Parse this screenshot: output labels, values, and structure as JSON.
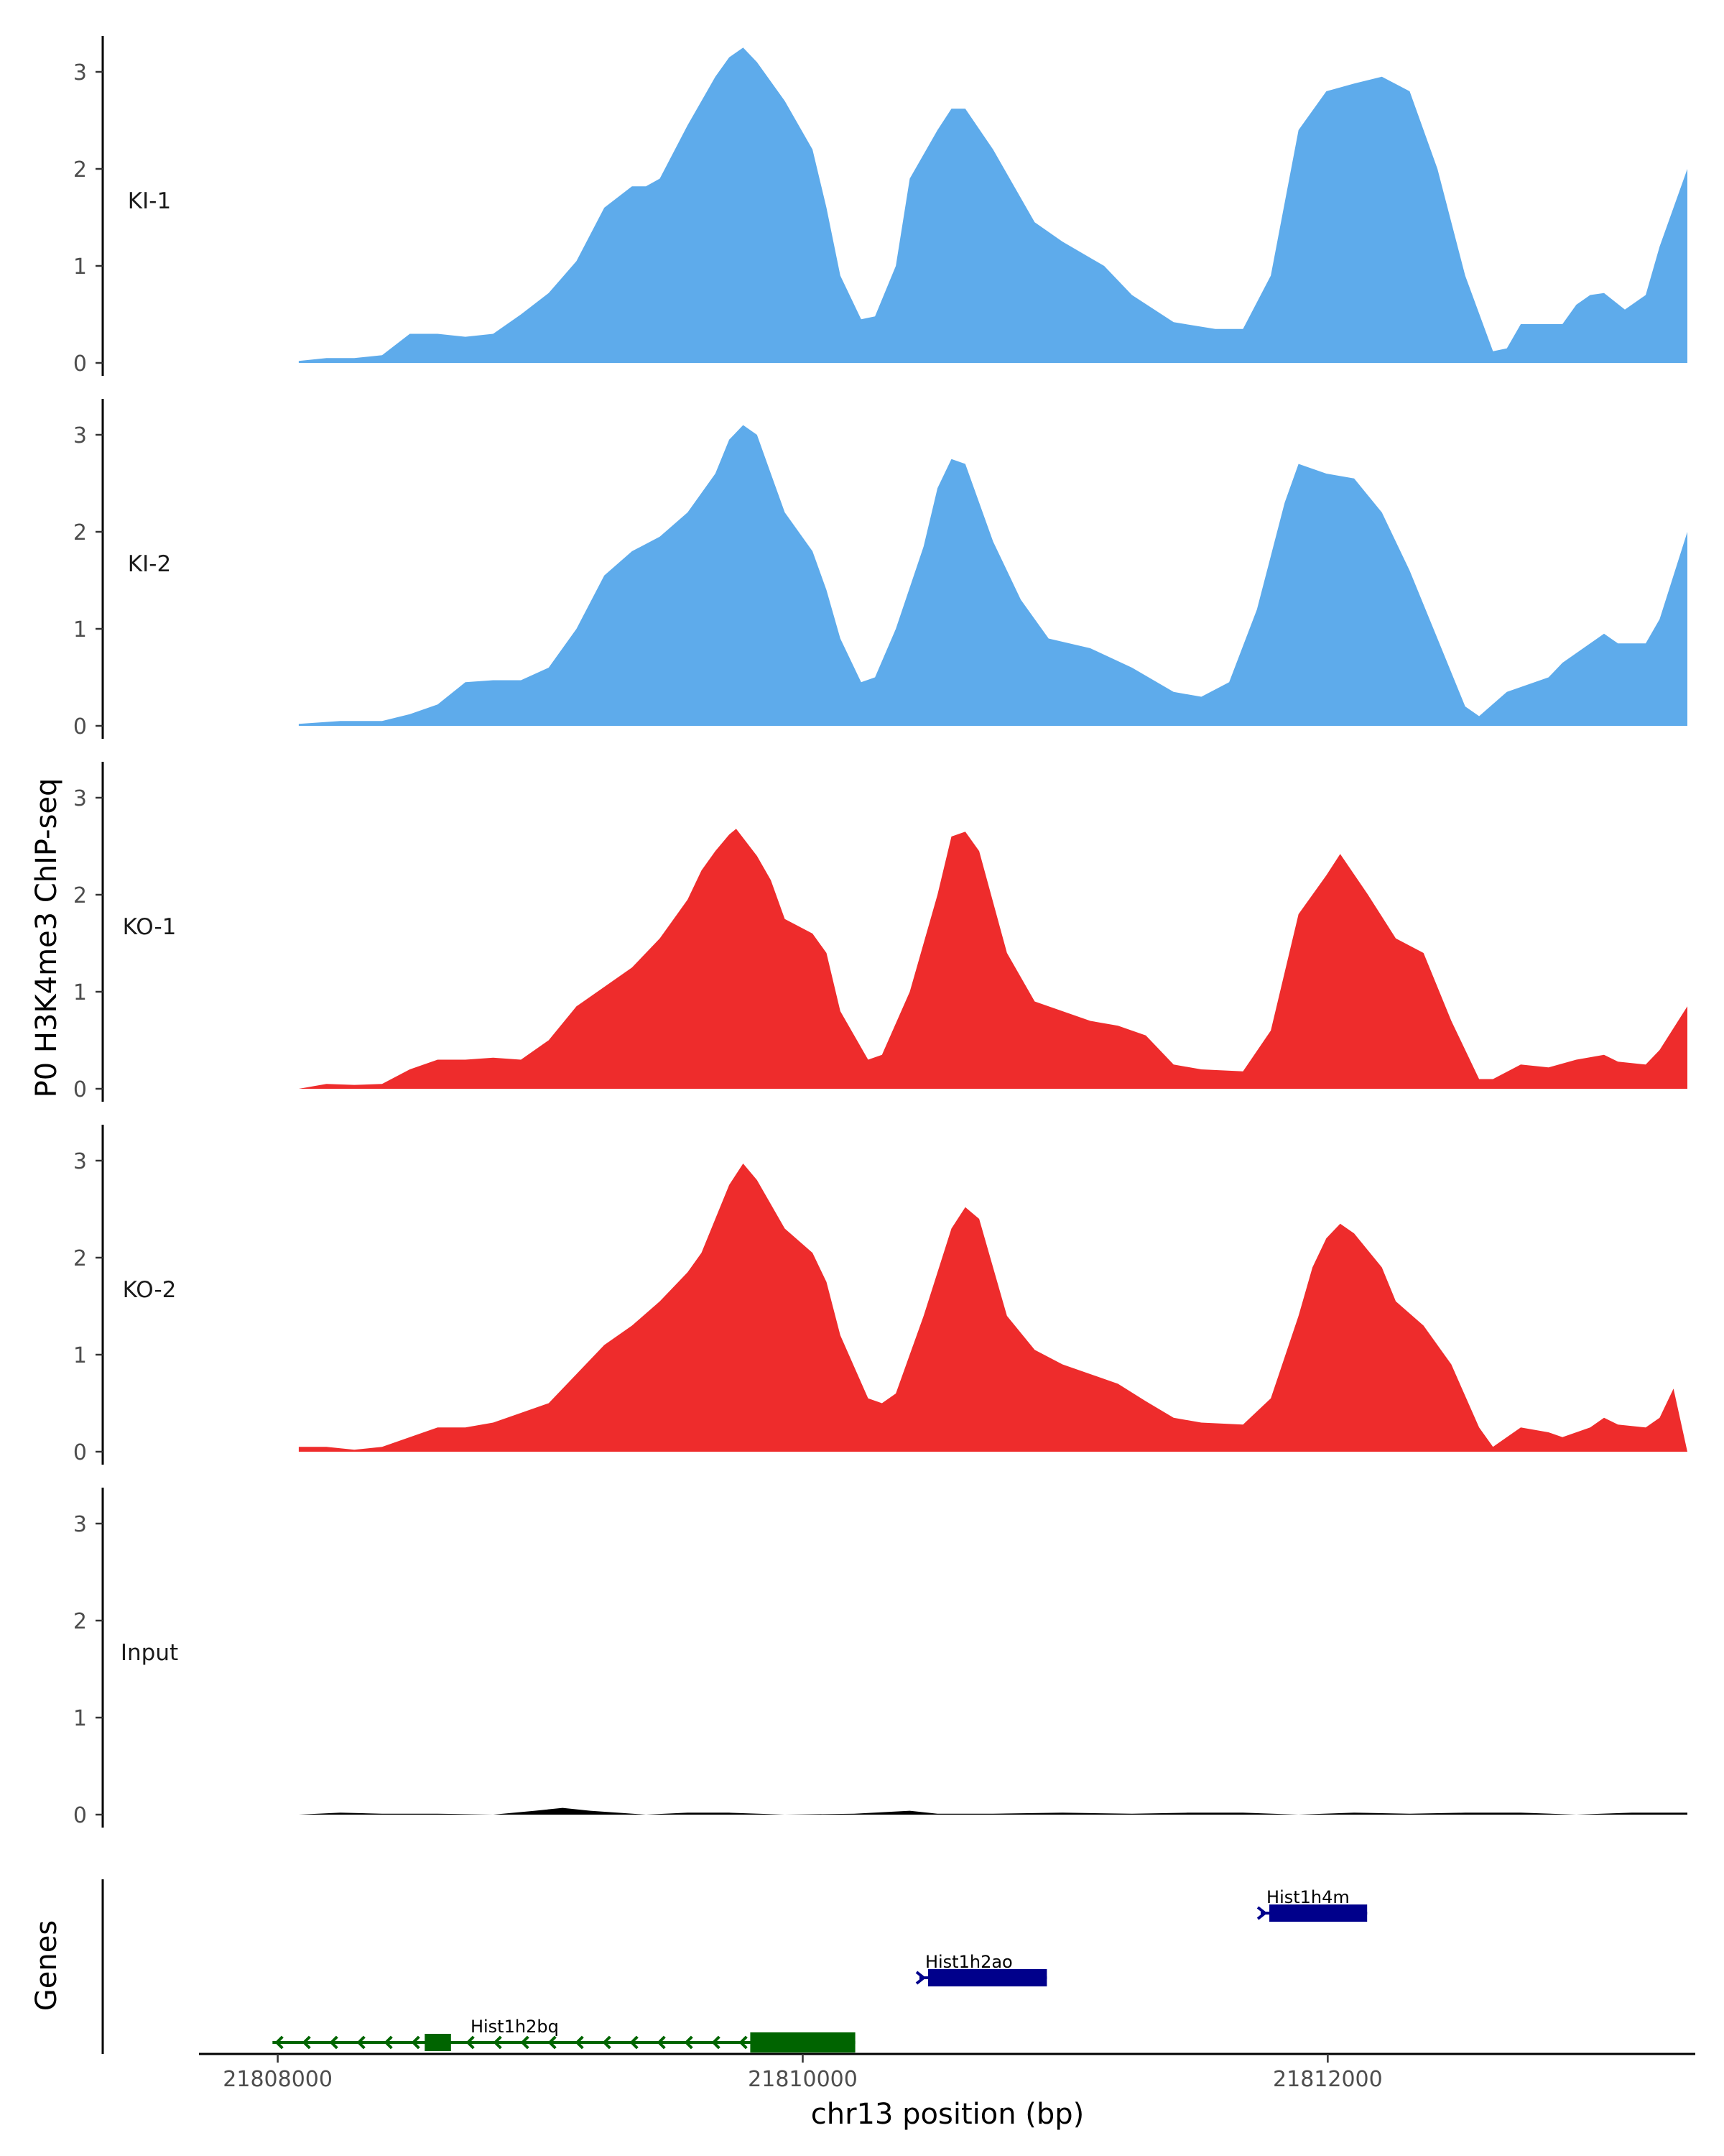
{
  "chart_data": {
    "type": "area",
    "title": "",
    "ylabel": "P0 H3K4me3 ChIP-seq",
    "xlabel": "chr13 position (bp)",
    "genes_label": "Genes",
    "xlim": [
      21807700,
      21813400
    ],
    "ylim": [
      0,
      3.4
    ],
    "yticks": [
      0,
      1,
      2,
      3
    ],
    "xticks": [
      21808000,
      21810000,
      21812000
    ],
    "x_range": [
      21808080,
      21813370
    ],
    "colors": {
      "KI-1": "#5eabeb",
      "KI-2": "#5eabeb",
      "KO-1": "#ee2c2c",
      "KO-2": "#ee2c2c",
      "Input": "#000000",
      "gene_plus": "#00008b",
      "gene_minus": "#006400"
    },
    "series": [
      {
        "name": "KI-1",
        "points": [
          [
            0,
            0.02
          ],
          [
            0.02,
            0.05
          ],
          [
            0.04,
            0.05
          ],
          [
            0.06,
            0.08
          ],
          [
            0.08,
            0.3
          ],
          [
            0.1,
            0.3
          ],
          [
            0.12,
            0.27
          ],
          [
            0.14,
            0.3
          ],
          [
            0.16,
            0.5
          ],
          [
            0.18,
            0.72
          ],
          [
            0.2,
            1.05
          ],
          [
            0.22,
            1.6
          ],
          [
            0.24,
            1.82
          ],
          [
            0.25,
            1.82
          ],
          [
            0.26,
            1.9
          ],
          [
            0.28,
            2.45
          ],
          [
            0.3,
            2.95
          ],
          [
            0.31,
            3.15
          ],
          [
            0.32,
            3.25
          ],
          [
            0.33,
            3.1
          ],
          [
            0.35,
            2.7
          ],
          [
            0.37,
            2.2
          ],
          [
            0.38,
            1.6
          ],
          [
            0.39,
            0.9
          ],
          [
            0.405,
            0.45
          ],
          [
            0.415,
            0.48
          ],
          [
            0.43,
            1.0
          ],
          [
            0.44,
            1.9
          ],
          [
            0.46,
            2.4
          ],
          [
            0.47,
            2.62
          ],
          [
            0.48,
            2.62
          ],
          [
            0.5,
            2.2
          ],
          [
            0.53,
            1.45
          ],
          [
            0.55,
            1.25
          ],
          [
            0.58,
            1.0
          ],
          [
            0.6,
            0.7
          ],
          [
            0.63,
            0.42
          ],
          [
            0.66,
            0.35
          ],
          [
            0.68,
            0.35
          ],
          [
            0.7,
            0.9
          ],
          [
            0.72,
            2.4
          ],
          [
            0.74,
            2.8
          ],
          [
            0.76,
            2.88
          ],
          [
            0.78,
            2.95
          ],
          [
            0.8,
            2.8
          ],
          [
            0.82,
            2.0
          ],
          [
            0.84,
            0.9
          ],
          [
            0.86,
            0.12
          ],
          [
            0.87,
            0.15
          ],
          [
            0.88,
            0.4
          ],
          [
            0.9,
            0.4
          ],
          [
            0.91,
            0.4
          ],
          [
            0.92,
            0.6
          ],
          [
            0.93,
            0.7
          ],
          [
            0.94,
            0.72
          ],
          [
            0.955,
            0.55
          ],
          [
            0.97,
            0.7
          ],
          [
            0.98,
            1.2
          ],
          [
            0.99,
            1.6
          ],
          [
            1,
            2.0
          ]
        ]
      },
      {
        "name": "KI-2",
        "points": [
          [
            0,
            0.02
          ],
          [
            0.03,
            0.05
          ],
          [
            0.06,
            0.05
          ],
          [
            0.08,
            0.12
          ],
          [
            0.1,
            0.22
          ],
          [
            0.12,
            0.45
          ],
          [
            0.14,
            0.47
          ],
          [
            0.16,
            0.47
          ],
          [
            0.18,
            0.6
          ],
          [
            0.2,
            1.0
          ],
          [
            0.22,
            1.55
          ],
          [
            0.24,
            1.8
          ],
          [
            0.26,
            1.95
          ],
          [
            0.28,
            2.2
          ],
          [
            0.3,
            2.6
          ],
          [
            0.31,
            2.95
          ],
          [
            0.32,
            3.1
          ],
          [
            0.33,
            3.0
          ],
          [
            0.34,
            2.6
          ],
          [
            0.35,
            2.2
          ],
          [
            0.37,
            1.8
          ],
          [
            0.38,
            1.4
          ],
          [
            0.39,
            0.9
          ],
          [
            0.405,
            0.45
          ],
          [
            0.415,
            0.5
          ],
          [
            0.43,
            1.0
          ],
          [
            0.45,
            1.85
          ],
          [
            0.46,
            2.45
          ],
          [
            0.47,
            2.75
          ],
          [
            0.48,
            2.7
          ],
          [
            0.5,
            1.9
          ],
          [
            0.52,
            1.3
          ],
          [
            0.54,
            0.9
          ],
          [
            0.57,
            0.8
          ],
          [
            0.6,
            0.6
          ],
          [
            0.63,
            0.35
          ],
          [
            0.65,
            0.3
          ],
          [
            0.67,
            0.45
          ],
          [
            0.69,
            1.2
          ],
          [
            0.71,
            2.3
          ],
          [
            0.72,
            2.7
          ],
          [
            0.74,
            2.6
          ],
          [
            0.76,
            2.55
          ],
          [
            0.78,
            2.2
          ],
          [
            0.8,
            1.6
          ],
          [
            0.82,
            0.9
          ],
          [
            0.84,
            0.2
          ],
          [
            0.85,
            0.1
          ],
          [
            0.87,
            0.35
          ],
          [
            0.89,
            0.45
          ],
          [
            0.9,
            0.5
          ],
          [
            0.91,
            0.65
          ],
          [
            0.93,
            0.85
          ],
          [
            0.94,
            0.95
          ],
          [
            0.95,
            0.85
          ],
          [
            0.97,
            0.85
          ],
          [
            0.98,
            1.1
          ],
          [
            0.99,
            1.55
          ],
          [
            1,
            2.0
          ]
        ]
      },
      {
        "name": "KO-1",
        "points": [
          [
            0,
            0.0
          ],
          [
            0.02,
            0.05
          ],
          [
            0.04,
            0.04
          ],
          [
            0.06,
            0.05
          ],
          [
            0.08,
            0.2
          ],
          [
            0.1,
            0.3
          ],
          [
            0.12,
            0.3
          ],
          [
            0.14,
            0.32
          ],
          [
            0.16,
            0.3
          ],
          [
            0.18,
            0.5
          ],
          [
            0.2,
            0.85
          ],
          [
            0.22,
            1.05
          ],
          [
            0.24,
            1.25
          ],
          [
            0.26,
            1.55
          ],
          [
            0.28,
            1.95
          ],
          [
            0.29,
            2.25
          ],
          [
            0.3,
            2.45
          ],
          [
            0.31,
            2.62
          ],
          [
            0.315,
            2.68
          ],
          [
            0.33,
            2.4
          ],
          [
            0.34,
            2.15
          ],
          [
            0.35,
            1.75
          ],
          [
            0.37,
            1.6
          ],
          [
            0.38,
            1.4
          ],
          [
            0.39,
            0.8
          ],
          [
            0.41,
            0.3
          ],
          [
            0.42,
            0.35
          ],
          [
            0.44,
            1.0
          ],
          [
            0.46,
            2.0
          ],
          [
            0.47,
            2.6
          ],
          [
            0.48,
            2.65
          ],
          [
            0.49,
            2.45
          ],
          [
            0.51,
            1.4
          ],
          [
            0.53,
            0.9
          ],
          [
            0.55,
            0.8
          ],
          [
            0.57,
            0.7
          ],
          [
            0.59,
            0.65
          ],
          [
            0.61,
            0.55
          ],
          [
            0.63,
            0.25
          ],
          [
            0.65,
            0.2
          ],
          [
            0.68,
            0.18
          ],
          [
            0.7,
            0.6
          ],
          [
            0.72,
            1.8
          ],
          [
            0.74,
            2.2
          ],
          [
            0.75,
            2.42
          ],
          [
            0.77,
            2.0
          ],
          [
            0.79,
            1.55
          ],
          [
            0.81,
            1.4
          ],
          [
            0.83,
            0.7
          ],
          [
            0.85,
            0.1
          ],
          [
            0.86,
            0.1
          ],
          [
            0.88,
            0.25
          ],
          [
            0.9,
            0.22
          ],
          [
            0.92,
            0.3
          ],
          [
            0.94,
            0.35
          ],
          [
            0.95,
            0.28
          ],
          [
            0.97,
            0.25
          ],
          [
            0.98,
            0.4
          ],
          [
            1,
            0.85
          ]
        ]
      },
      {
        "name": "KO-2",
        "points": [
          [
            0,
            0.05
          ],
          [
            0.02,
            0.05
          ],
          [
            0.04,
            0.02
          ],
          [
            0.06,
            0.05
          ],
          [
            0.08,
            0.15
          ],
          [
            0.1,
            0.25
          ],
          [
            0.12,
            0.25
          ],
          [
            0.14,
            0.3
          ],
          [
            0.16,
            0.4
          ],
          [
            0.18,
            0.5
          ],
          [
            0.2,
            0.8
          ],
          [
            0.22,
            1.1
          ],
          [
            0.24,
            1.3
          ],
          [
            0.26,
            1.55
          ],
          [
            0.28,
            1.85
          ],
          [
            0.29,
            2.05
          ],
          [
            0.3,
            2.4
          ],
          [
            0.31,
            2.75
          ],
          [
            0.32,
            2.97
          ],
          [
            0.33,
            2.8
          ],
          [
            0.35,
            2.3
          ],
          [
            0.37,
            2.05
          ],
          [
            0.38,
            1.75
          ],
          [
            0.39,
            1.2
          ],
          [
            0.41,
            0.55
          ],
          [
            0.42,
            0.5
          ],
          [
            0.43,
            0.6
          ],
          [
            0.45,
            1.4
          ],
          [
            0.47,
            2.3
          ],
          [
            0.48,
            2.52
          ],
          [
            0.49,
            2.4
          ],
          [
            0.51,
            1.4
          ],
          [
            0.53,
            1.05
          ],
          [
            0.55,
            0.9
          ],
          [
            0.57,
            0.8
          ],
          [
            0.59,
            0.7
          ],
          [
            0.61,
            0.52
          ],
          [
            0.63,
            0.35
          ],
          [
            0.65,
            0.3
          ],
          [
            0.68,
            0.28
          ],
          [
            0.7,
            0.55
          ],
          [
            0.72,
            1.4
          ],
          [
            0.73,
            1.9
          ],
          [
            0.74,
            2.2
          ],
          [
            0.75,
            2.35
          ],
          [
            0.76,
            2.25
          ],
          [
            0.78,
            1.9
          ],
          [
            0.79,
            1.55
          ],
          [
            0.81,
            1.3
          ],
          [
            0.83,
            0.9
          ],
          [
            0.85,
            0.25
          ],
          [
            0.86,
            0.05
          ],
          [
            0.87,
            0.15
          ],
          [
            0.88,
            0.25
          ],
          [
            0.9,
            0.2
          ],
          [
            0.91,
            0.15
          ],
          [
            0.93,
            0.25
          ],
          [
            0.94,
            0.35
          ],
          [
            0.95,
            0.28
          ],
          [
            0.97,
            0.25
          ],
          [
            0.98,
            0.35
          ],
          [
            0.99,
            0.65
          ],
          [
            1,
            0.0
          ]
        ]
      },
      {
        "name": "Input",
        "points": [
          [
            0,
            0.0
          ],
          [
            0.03,
            0.02
          ],
          [
            0.06,
            0.01
          ],
          [
            0.1,
            0.01
          ],
          [
            0.14,
            0.0
          ],
          [
            0.17,
            0.04
          ],
          [
            0.19,
            0.07
          ],
          [
            0.21,
            0.04
          ],
          [
            0.25,
            0.0
          ],
          [
            0.28,
            0.02
          ],
          [
            0.31,
            0.02
          ],
          [
            0.35,
            0.0
          ],
          [
            0.4,
            0.01
          ],
          [
            0.44,
            0.04
          ],
          [
            0.46,
            0.01
          ],
          [
            0.5,
            0.01
          ],
          [
            0.55,
            0.02
          ],
          [
            0.6,
            0.01
          ],
          [
            0.64,
            0.02
          ],
          [
            0.68,
            0.02
          ],
          [
            0.72,
            0.0
          ],
          [
            0.76,
            0.02
          ],
          [
            0.8,
            0.01
          ],
          [
            0.84,
            0.02
          ],
          [
            0.88,
            0.02
          ],
          [
            0.92,
            0.0
          ],
          [
            0.96,
            0.02
          ],
          [
            1,
            0.02
          ]
        ]
      }
    ],
    "genes": [
      {
        "name": "Hist1h4m",
        "start": 21811750,
        "end": 21812150,
        "strand": "+",
        "row": 3
      },
      {
        "name": "Hist1h2ao",
        "start": 21810450,
        "end": 21810930,
        "strand": "+",
        "row": 2
      },
      {
        "name": "Hist1h2bq",
        "start": 21807980,
        "end": 21810200,
        "strand": "-",
        "row": 1
      }
    ]
  }
}
